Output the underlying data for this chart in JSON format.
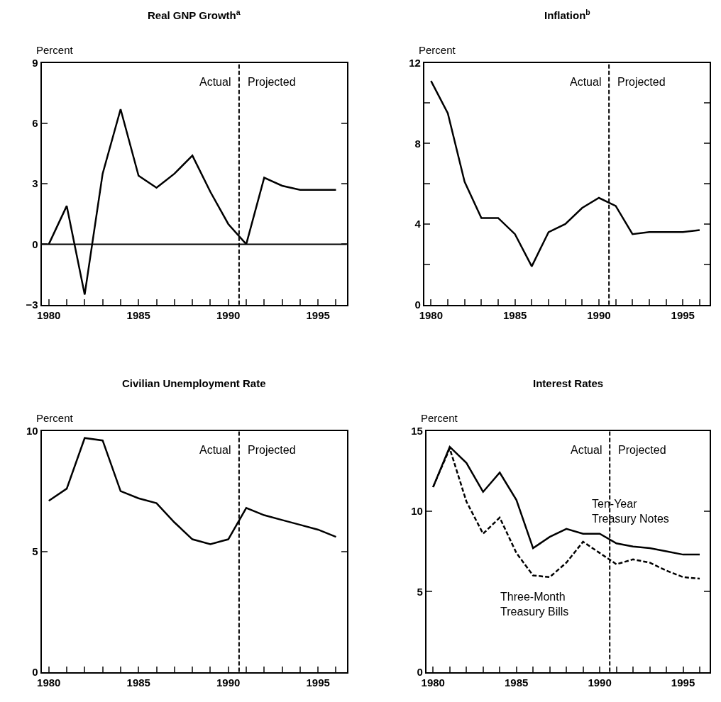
{
  "chart_data": [
    {
      "type": "line",
      "title": "Real GNP Growth$^{a}$",
      "ylabel": "Percent",
      "x": [
        1980,
        1981,
        1982,
        1983,
        1984,
        1985,
        1986,
        1987,
        1988,
        1989,
        1990,
        1991,
        1992,
        1993,
        1994,
        1995,
        1996
      ],
      "series": [
        {
          "color": "#000000",
          "values": [
            0,
            1.9,
            -2.5,
            3.5,
            6.7,
            3.4,
            2.8,
            3.5,
            4.4,
            2.6,
            1.0,
            0,
            3.3,
            2.9,
            2.7,
            2.7,
            2.7
          ]
        }
      ],
      "xlim": [
        1979.6,
        1996.6
      ],
      "xticks": [
        1980,
        {
          "value": 1981,
          "label": null
        },
        {
          "value": 1982,
          "label": null
        },
        {
          "value": 1983,
          "label": null
        },
        {
          "value": 1984,
          "label": null
        },
        1985,
        {
          "value": 1986,
          "label": null
        },
        {
          "value": 1987,
          "label": null
        },
        {
          "value": 1988,
          "label": null
        },
        {
          "value": 1989,
          "label": null
        },
        1990,
        {
          "value": 1991,
          "label": null
        },
        {
          "value": 1992,
          "label": null
        },
        {
          "value": 1993,
          "label": null
        },
        {
          "value": 1994,
          "label": null
        },
        1995,
        {
          "value": 1996,
          "label": null
        }
      ],
      "ylim": [
        -3,
        9
      ],
      "yticks": [
        {
          "value": -3,
          "label": "−3"
        },
        0,
        3,
        6,
        9
      ],
      "ref_lines": [
        {
          "axis": "x",
          "value": 1990.6,
          "color": "#000000",
          "line_style": "dashed"
        },
        {
          "axis": "y",
          "value": 0,
          "color": "#000000",
          "line_style": "solid"
        }
      ],
      "annotations": [
        "Actual",
        "Projected"
      ],
      "legend": false,
      "marker": "none",
      "line_style": "solid"
    },
    {
      "type": "line",
      "title": "Inflation$^{b}$",
      "ylabel": "Percent",
      "x": [
        1980,
        1981,
        1982,
        1983,
        1984,
        1985,
        1986,
        1987,
        1988,
        1989,
        1990,
        1991,
        1992,
        1993,
        1994,
        1995,
        1996
      ],
      "series": [
        {
          "color": "#000000",
          "values": [
            11.1,
            9.5,
            6.1,
            4.3,
            4.3,
            3.5,
            1.9,
            3.6,
            4.0,
            4.8,
            5.3,
            4.9,
            3.5,
            3.6,
            3.6,
            3.6,
            3.7
          ]
        }
      ],
      "xlim": [
        1979.6,
        1996.6
      ],
      "xticks": [
        1980,
        {
          "value": 1981,
          "label": null
        },
        {
          "value": 1982,
          "label": null
        },
        {
          "value": 1983,
          "label": null
        },
        {
          "value": 1984,
          "label": null
        },
        1985,
        {
          "value": 1986,
          "label": null
        },
        {
          "value": 1987,
          "label": null
        },
        {
          "value": 1988,
          "label": null
        },
        {
          "value": 1989,
          "label": null
        },
        1990,
        {
          "value": 1991,
          "label": null
        },
        {
          "value": 1992,
          "label": null
        },
        {
          "value": 1993,
          "label": null
        },
        {
          "value": 1994,
          "label": null
        },
        1995,
        {
          "value": 1996,
          "label": null
        }
      ],
      "ylim": [
        0,
        12
      ],
      "yticks": [
        0,
        {
          "value": 2,
          "label": null
        },
        4,
        {
          "value": 6,
          "label": null
        },
        8,
        {
          "value": 10,
          "label": null
        },
        12
      ],
      "ref_lines": [
        {
          "axis": "x",
          "value": 1990.6,
          "color": "#000000",
          "line_style": "dashed"
        }
      ],
      "annotations": [
        "Actual",
        "Projected"
      ],
      "legend": false,
      "marker": "none",
      "line_style": "solid"
    },
    {
      "type": "line",
      "title": "Civilian Unemployment Rate",
      "ylabel": "Percent",
      "x": [
        1980,
        1981,
        1982,
        1983,
        1984,
        1985,
        1986,
        1987,
        1988,
        1989,
        1990,
        1991,
        1992,
        1993,
        1994,
        1995,
        1996
      ],
      "series": [
        {
          "color": "#000000",
          "values": [
            7.1,
            7.6,
            9.7,
            9.6,
            7.5,
            7.2,
            7.0,
            6.2,
            5.5,
            5.3,
            5.5,
            6.8,
            6.5,
            6.3,
            6.1,
            5.9,
            5.6
          ]
        }
      ],
      "xlim": [
        1979.6,
        1996.6
      ],
      "xticks": [
        1980,
        {
          "value": 1981,
          "label": null
        },
        {
          "value": 1982,
          "label": null
        },
        {
          "value": 1983,
          "label": null
        },
        {
          "value": 1984,
          "label": null
        },
        1985,
        {
          "value": 1986,
          "label": null
        },
        {
          "value": 1987,
          "label": null
        },
        {
          "value": 1988,
          "label": null
        },
        {
          "value": 1989,
          "label": null
        },
        1990,
        {
          "value": 1991,
          "label": null
        },
        {
          "value": 1992,
          "label": null
        },
        {
          "value": 1993,
          "label": null
        },
        {
          "value": 1994,
          "label": null
        },
        1995,
        {
          "value": 1996,
          "label": null
        }
      ],
      "ylim": [
        0,
        10
      ],
      "yticks": [
        0,
        5,
        10
      ],
      "ref_lines": [
        {
          "axis": "x",
          "value": 1990.6,
          "color": "#000000",
          "line_style": "dashed"
        }
      ],
      "annotations": [
        "Actual",
        "Projected"
      ],
      "legend": false,
      "marker": "none",
      "line_style": "solid"
    },
    {
      "type": "line",
      "title": "Interest Rates",
      "ylabel": "Percent",
      "x": [
        1980,
        1981,
        1982,
        1983,
        1984,
        1985,
        1986,
        1987,
        1988,
        1989,
        1990,
        1991,
        1992,
        1993,
        1994,
        1995,
        1996
      ],
      "series": [
        {
          "name": "Ten-Year Treasury Notes",
          "color": "#000000",
          "line_style": "solid",
          "values": [
            11.5,
            14.0,
            13.0,
            11.2,
            12.4,
            10.7,
            7.7,
            8.4,
            8.9,
            8.6,
            8.6,
            8.0,
            7.8,
            7.7,
            7.5,
            7.3,
            7.3
          ]
        },
        {
          "name": "Three-Month Treasury Bills",
          "color": "#000000",
          "line_style": "dashed",
          "values": [
            11.5,
            13.9,
            10.6,
            8.6,
            9.6,
            7.4,
            6.0,
            5.9,
            6.8,
            8.1,
            7.4,
            6.7,
            7.0,
            6.8,
            6.3,
            5.9,
            5.8
          ]
        }
      ],
      "xlim": [
        1979.6,
        1996.6
      ],
      "xticks": [
        1980,
        {
          "value": 1981,
          "label": null
        },
        {
          "value": 1982,
          "label": null
        },
        {
          "value": 1983,
          "label": null
        },
        {
          "value": 1984,
          "label": null
        },
        1985,
        {
          "value": 1986,
          "label": null
        },
        {
          "value": 1987,
          "label": null
        },
        {
          "value": 1988,
          "label": null
        },
        {
          "value": 1989,
          "label": null
        },
        1990,
        {
          "value": 1991,
          "label": null
        },
        {
          "value": 1992,
          "label": null
        },
        {
          "value": 1993,
          "label": null
        },
        {
          "value": 1994,
          "label": null
        },
        1995,
        {
          "value": 1996,
          "label": null
        }
      ],
      "ylim": [
        0,
        15
      ],
      "yticks": [
        0,
        5,
        10,
        15
      ],
      "ref_lines": [
        {
          "axis": "x",
          "value": 1990.6,
          "color": "#000000",
          "line_style": "dashed"
        }
      ],
      "annotations": [
        "Actual",
        "Projected"
      ],
      "legend": false,
      "marker": "none"
    }
  ]
}
